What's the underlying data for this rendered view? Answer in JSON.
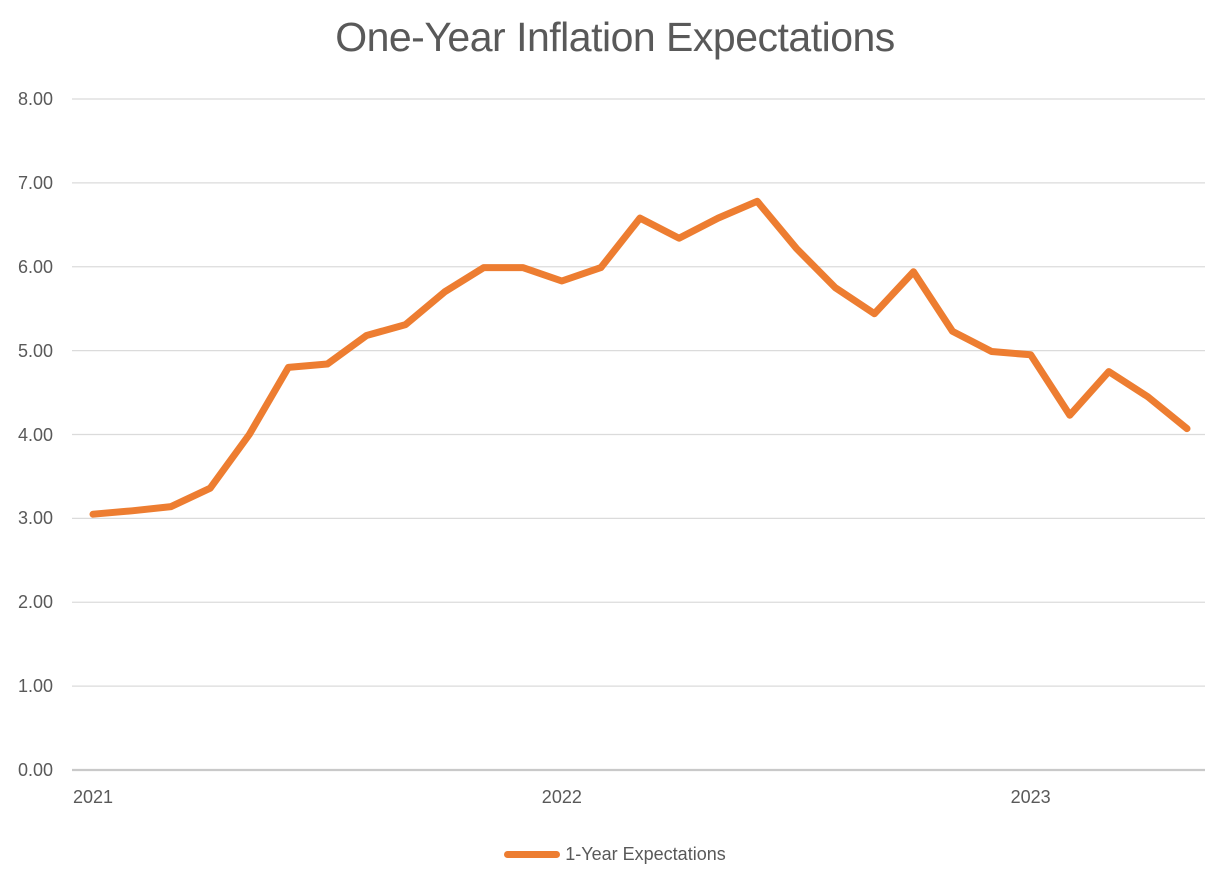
{
  "chart_data": {
    "type": "line",
    "title": "One-Year Inflation Expectations",
    "x": [
      "2021-01",
      "2021-02",
      "2021-03",
      "2021-04",
      "2021-05",
      "2021-06",
      "2021-07",
      "2021-08",
      "2021-09",
      "2021-10",
      "2021-11",
      "2021-12",
      "2022-01",
      "2022-02",
      "2022-03",
      "2022-04",
      "2022-05",
      "2022-06",
      "2022-07",
      "2022-08",
      "2022-09",
      "2022-10",
      "2022-11",
      "2022-12",
      "2023-01",
      "2023-02",
      "2023-03",
      "2023-04",
      "2023-05"
    ],
    "series": [
      {
        "name": "1-Year Expectations",
        "values": [
          3.05,
          3.09,
          3.14,
          3.36,
          4.0,
          4.8,
          4.84,
          5.18,
          5.31,
          5.7,
          5.99,
          5.99,
          5.83,
          5.99,
          6.58,
          6.34,
          6.58,
          6.78,
          6.22,
          5.75,
          5.44,
          5.94,
          5.23,
          4.99,
          4.95,
          4.23,
          4.75,
          4.45,
          4.07
        ]
      }
    ],
    "y_axis": {
      "min": 0,
      "max": 8,
      "step": 1,
      "tick_labels": [
        "0.00",
        "1.00",
        "2.00",
        "3.00",
        "4.00",
        "5.00",
        "6.00",
        "7.00",
        "8.00"
      ]
    },
    "x_axis": {
      "tick_labels": [
        {
          "label": "2021",
          "month_index": 0
        },
        {
          "label": "2022",
          "month_index": 12
        },
        {
          "label": "2023",
          "month_index": 24
        }
      ]
    },
    "grid": "horizontal",
    "legend_position": "bottom"
  },
  "legend": {
    "label": "1-Year Expectations"
  },
  "colors": {
    "series_line": "#ED7D31",
    "title_text": "#595959",
    "axis_text": "#595959",
    "gridline": "#DBDBDB",
    "axis_line": "#C9C9C9",
    "background": "#FFFFFF"
  }
}
